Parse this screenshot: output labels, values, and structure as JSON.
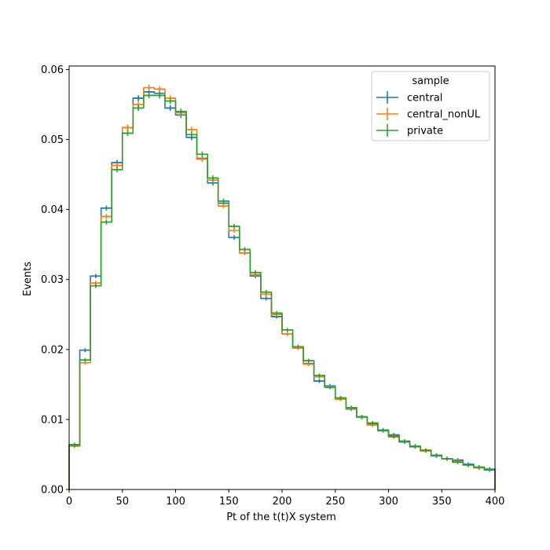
{
  "chart_data": {
    "type": "line",
    "title": "",
    "xlabel": "Pt of the t(t)X system",
    "ylabel": "Events",
    "xlim": [
      0,
      400
    ],
    "ylim": [
      0,
      0.0605
    ],
    "bin_edges": [
      0,
      10,
      20,
      30,
      40,
      50,
      60,
      70,
      80,
      90,
      100,
      110,
      120,
      130,
      140,
      150,
      160,
      170,
      180,
      190,
      200,
      210,
      220,
      230,
      240,
      250,
      260,
      270,
      280,
      290,
      300,
      310,
      320,
      330,
      340,
      350,
      360,
      370,
      380,
      390,
      400
    ],
    "x_ticks": [
      "0",
      "50",
      "100",
      "150",
      "200",
      "250",
      "300",
      "350",
      "400"
    ],
    "y_ticks": [
      "0.00",
      "0.01",
      "0.02",
      "0.03",
      "0.04",
      "0.05",
      "0.06"
    ],
    "grid": false,
    "legend": {
      "title": "sample",
      "placement": "top-right"
    },
    "series": [
      {
        "name": "central",
        "color": "#1f77b4",
        "values": [
          0.0064,
          0.0199,
          0.0305,
          0.0402,
          0.0467,
          0.0517,
          0.0559,
          0.0568,
          0.0566,
          0.0545,
          0.0535,
          0.0503,
          0.0473,
          0.0438,
          0.0409,
          0.036,
          0.0338,
          0.0305,
          0.0273,
          0.0247,
          0.0222,
          0.0203,
          0.018,
          0.0155,
          0.0148,
          0.013,
          0.0115,
          0.0103,
          0.0094,
          0.0085,
          0.0078,
          0.0068,
          0.0061,
          0.0056,
          0.0048,
          0.0044,
          0.0042,
          0.0036,
          0.0031,
          0.0028
        ]
      },
      {
        "name": "central_nonUL",
        "color": "#ff7f0e",
        "values": [
          0.0062,
          0.0181,
          0.0295,
          0.039,
          0.0463,
          0.0517,
          0.055,
          0.0574,
          0.0572,
          0.0559,
          0.0538,
          0.0514,
          0.0472,
          0.0442,
          0.0405,
          0.037,
          0.0338,
          0.0307,
          0.0279,
          0.025,
          0.0222,
          0.0202,
          0.0179,
          0.0161,
          0.0147,
          0.0129,
          0.0116,
          0.0103,
          0.0092,
          0.0084,
          0.0075,
          0.0069,
          0.0062,
          0.0055,
          0.0049,
          0.0044,
          0.004,
          0.0035,
          0.0031,
          0.0029
        ]
      },
      {
        "name": "private",
        "color": "#2ca02c",
        "values": [
          0.0063,
          0.0185,
          0.0291,
          0.0382,
          0.0457,
          0.0509,
          0.0545,
          0.0563,
          0.0563,
          0.0555,
          0.054,
          0.0507,
          0.0479,
          0.0445,
          0.0412,
          0.0376,
          0.0343,
          0.031,
          0.0282,
          0.0252,
          0.0228,
          0.0204,
          0.0184,
          0.0163,
          0.0146,
          0.0131,
          0.0117,
          0.0104,
          0.0095,
          0.0084,
          0.0076,
          0.0069,
          0.0062,
          0.0056,
          0.0049,
          0.0044,
          0.0039,
          0.0035,
          0.0032,
          0.0029
        ]
      }
    ]
  }
}
